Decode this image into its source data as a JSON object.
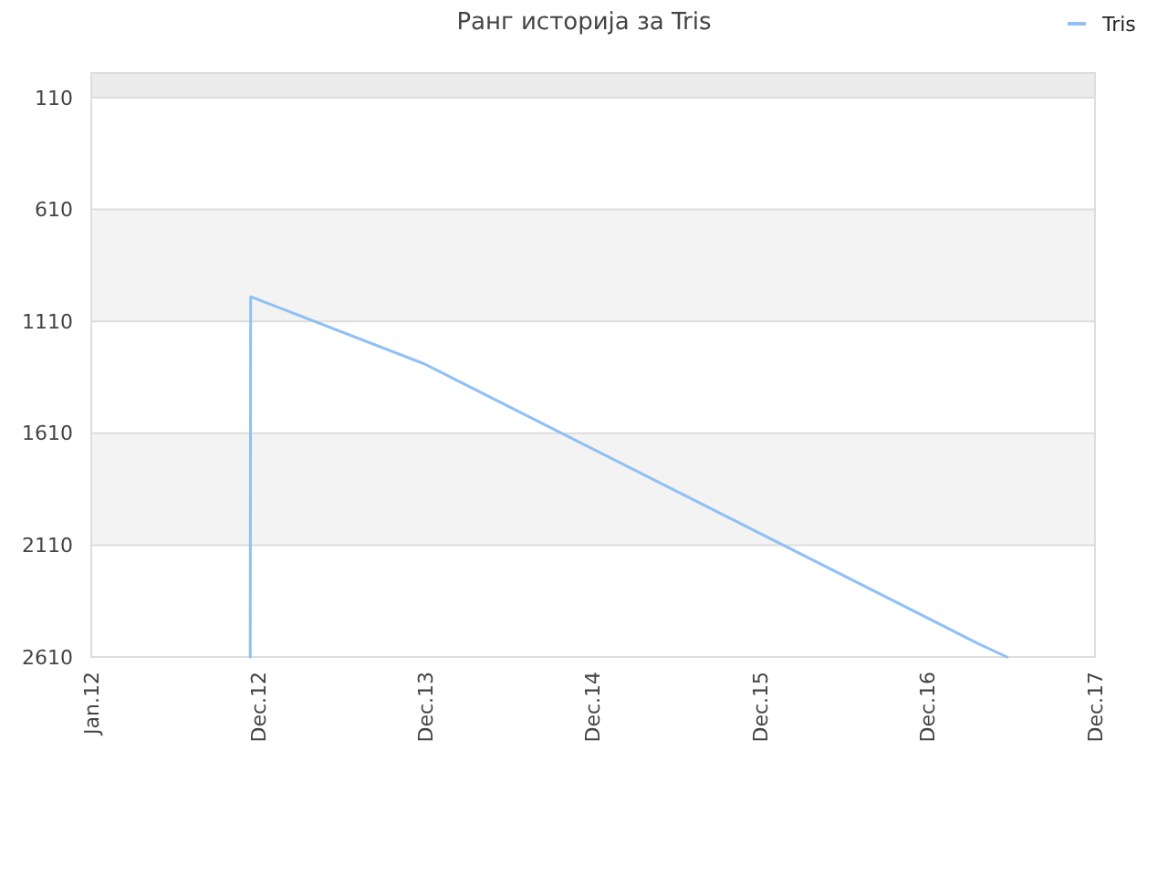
{
  "chart_data": {
    "type": "line",
    "title": "Ранг историја за Tris",
    "x": [
      "2012-12-13",
      "2012-12-14",
      "2013-12-28",
      "2017-04-20",
      "2017-06-22"
    ],
    "series": [
      {
        "name": "Tris",
        "color": "#90c0f5",
        "values": [
          2610,
          1000,
          1300,
          2550,
          2610
        ]
      }
    ],
    "ylim": [
      2610,
      0
    ],
    "yticks": [
      110,
      610,
      1110,
      1610,
      2110,
      2610
    ],
    "xlim": [
      "2012-01-01",
      "2017-12-31"
    ],
    "xticks": [
      {
        "value": "2012-01-01",
        "label": "Jan.12"
      },
      {
        "value": "2012-12-31",
        "label": "Dec.12"
      },
      {
        "value": "2013-12-31",
        "label": "Dec.13"
      },
      {
        "value": "2014-12-31",
        "label": "Dec.14"
      },
      {
        "value": "2015-12-31",
        "label": "Dec.15"
      },
      {
        "value": "2016-12-31",
        "label": "Dec.16"
      },
      {
        "value": "2017-12-31",
        "label": "Dec.17"
      }
    ],
    "bands": [
      {
        "axis": "y",
        "from": 0,
        "to": 110,
        "color": "#ececec"
      },
      {
        "axis": "y",
        "from": 610,
        "to": 1110,
        "color": "#f3f3f3"
      },
      {
        "axis": "y",
        "from": 1610,
        "to": 2110,
        "color": "#f3f3f3"
      }
    ],
    "grid": "y",
    "legend": "top right"
  }
}
